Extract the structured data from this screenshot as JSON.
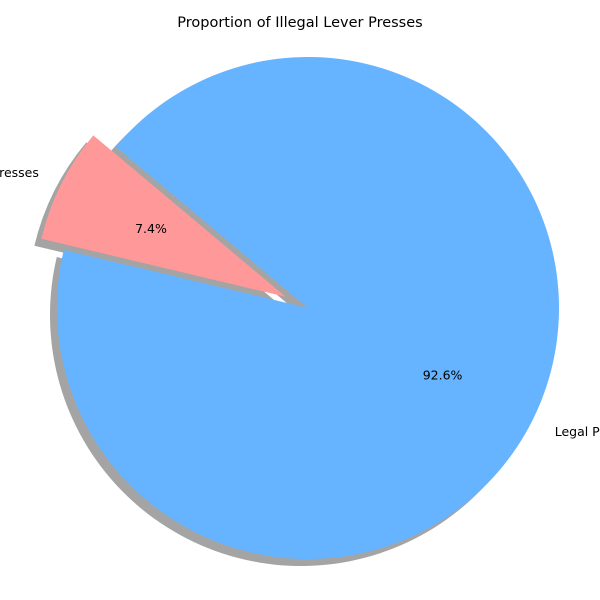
{
  "chart_data": {
    "type": "pie",
    "title": "Proportion of Illegal Lever Presses",
    "slices": [
      {
        "label": "Illegal Presses",
        "value": 7.4,
        "pct_label": "7.4%",
        "color": "#ff9999",
        "explode": 0.1
      },
      {
        "label": "Legal Presses",
        "value": 92.6,
        "pct_label": "92.6%",
        "color": "#66b3ff",
        "explode": 0
      }
    ],
    "start_angle": 140,
    "direction": "counterclockwise",
    "shadow": true,
    "legend": "none"
  }
}
